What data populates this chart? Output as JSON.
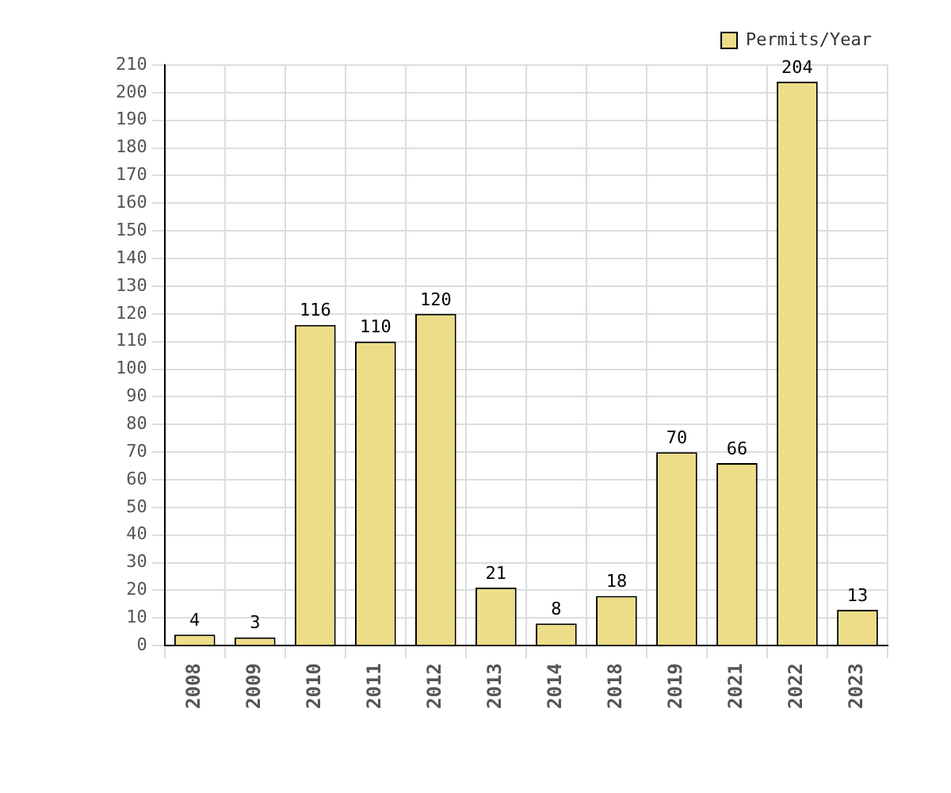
{
  "chart_data": {
    "type": "bar",
    "categories": [
      "2008",
      "2009",
      "2010",
      "2011",
      "2012",
      "2013",
      "2014",
      "2018",
      "2019",
      "2021",
      "2022",
      "2023"
    ],
    "series": [
      {
        "name": "Permits/Year",
        "color": "#eedd88",
        "values": [
          4,
          3,
          116,
          110,
          120,
          21,
          8,
          18,
          70,
          66,
          204,
          13
        ]
      }
    ],
    "ylim": [
      0,
      210
    ],
    "yticks": [
      0,
      10,
      20,
      30,
      40,
      50,
      60,
      70,
      80,
      90,
      100,
      110,
      120,
      130,
      140,
      150,
      160,
      170,
      180,
      190,
      200,
      210
    ],
    "grid": true,
    "legend": "top right",
    "data_labels": true
  }
}
